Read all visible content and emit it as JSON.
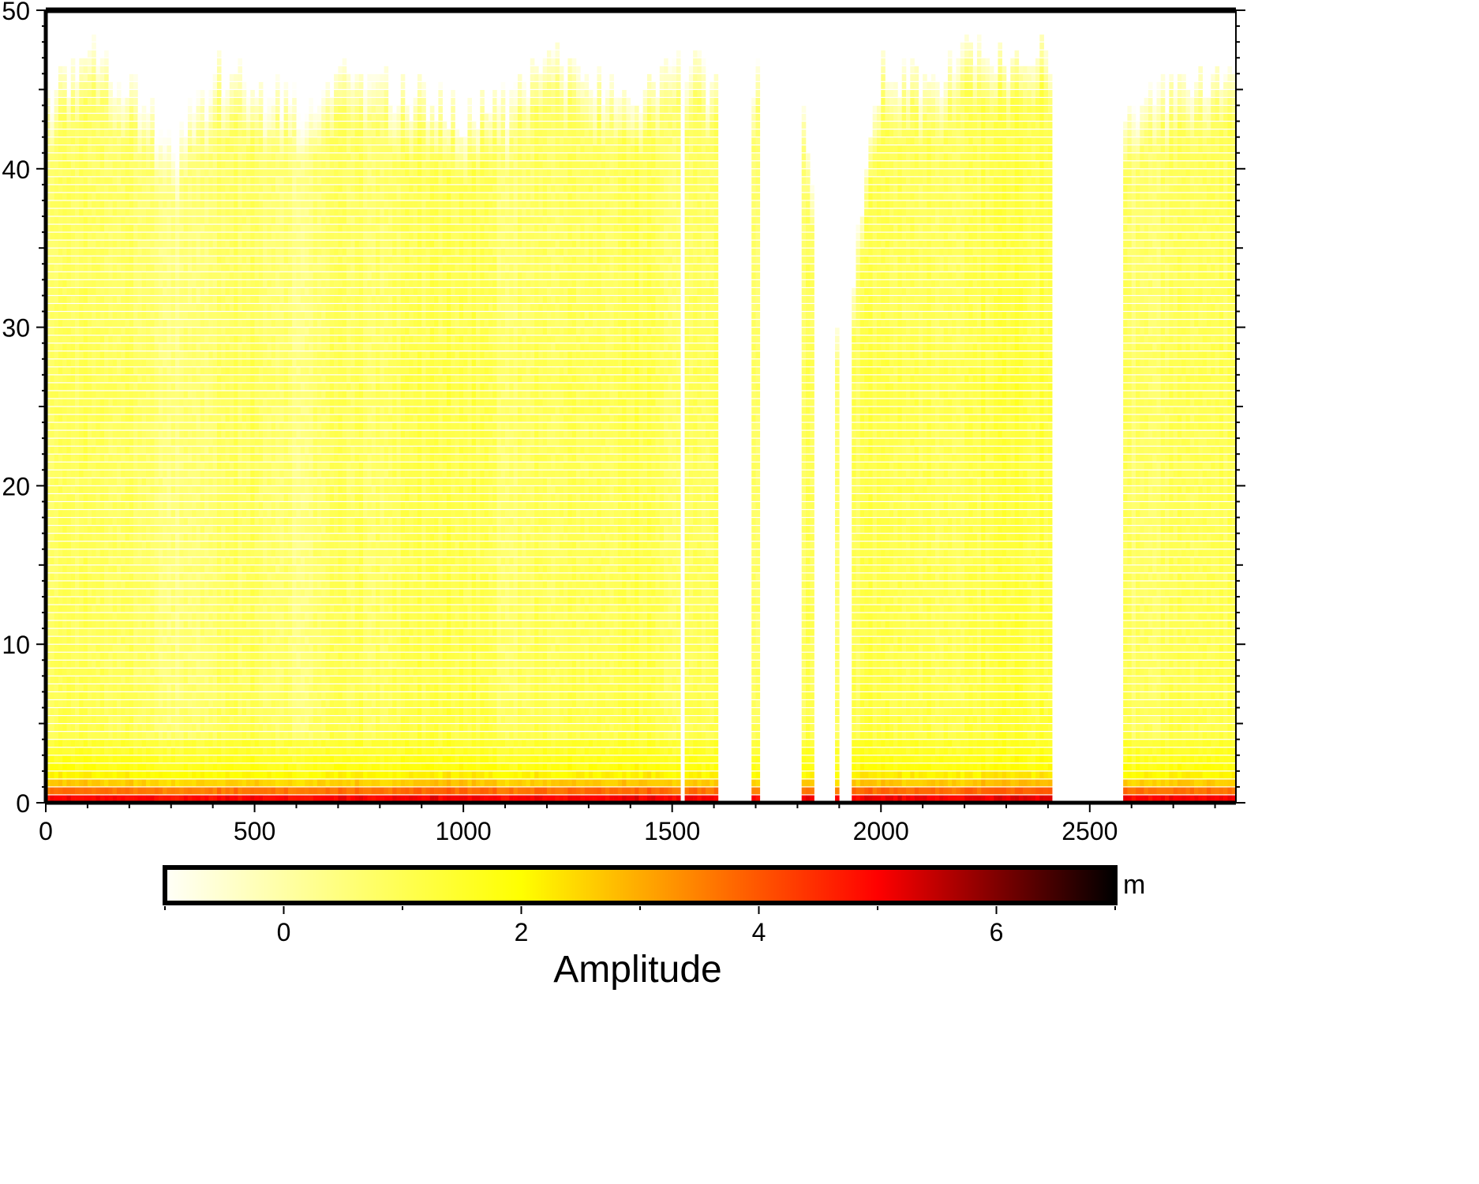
{
  "chart_data": {
    "type": "heatmap",
    "title": "",
    "xlabel": "",
    "ylabel": "",
    "xlim": [
      0,
      2850
    ],
    "ylim": [
      0,
      50
    ],
    "x_ticks": [
      0,
      500,
      1000,
      1500,
      2000,
      2500
    ],
    "y_ticks": [
      0,
      10,
      20,
      30,
      40,
      50
    ],
    "row_step": 0.5,
    "colorbar": {
      "label": "Amplitude",
      "unit": "m",
      "range": [
        -1,
        7
      ],
      "ticks": [
        0,
        2,
        4,
        6
      ],
      "colors": [
        "#fffff8",
        "#ffff00",
        "#ff9a00",
        "#ff0000",
        "#000000"
      ],
      "color_stops": [
        -1,
        2,
        3.2,
        5,
        7
      ]
    },
    "data_gaps_x": [
      [
        1515,
        1530
      ],
      [
        1610,
        1690
      ],
      [
        1705,
        1805
      ],
      [
        1835,
        1890
      ],
      [
        1900,
        1930
      ],
      [
        2410,
        2575
      ]
    ],
    "column_profile": {
      "x": [
        0,
        100,
        200,
        300,
        400,
        500,
        600,
        700,
        800,
        900,
        1000,
        1100,
        1200,
        1300,
        1400,
        1500,
        1600,
        1700,
        1800,
        1900,
        2000,
        2100,
        2200,
        2300,
        2400,
        2600,
        2700,
        2800
      ],
      "mean_amplitude": [
        0.6,
        0.9,
        0.7,
        0.2,
        0.6,
        0.8,
        0.3,
        0.9,
        0.7,
        1.0,
        1.1,
        0.6,
        0.9,
        0.7,
        1.1,
        0.8,
        0.9,
        0.6,
        0.8,
        0.7,
        1.2,
        0.9,
        1.0,
        1.3,
        1.2,
        0.6,
        0.8,
        0.9
      ],
      "top_depth": [
        44,
        47,
        45,
        41,
        46,
        45,
        44,
        46,
        45,
        44,
        43,
        44,
        47,
        45,
        44,
        47,
        45,
        46,
        45,
        28,
        46,
        45,
        47,
        46,
        47,
        44,
        45,
        46
      ]
    },
    "depth_profile": {
      "y": [
        0,
        0.5,
        1,
        1.5,
        2,
        3,
        4,
        6,
        10,
        20,
        27,
        30,
        40,
        45,
        47
      ],
      "amplitude": [
        5.0,
        3.7,
        2.6,
        2.1,
        1.8,
        1.5,
        1.3,
        1.1,
        0.9,
        0.8,
        1.0,
        0.7,
        0.6,
        0.4,
        0.2
      ]
    },
    "grid": false
  }
}
